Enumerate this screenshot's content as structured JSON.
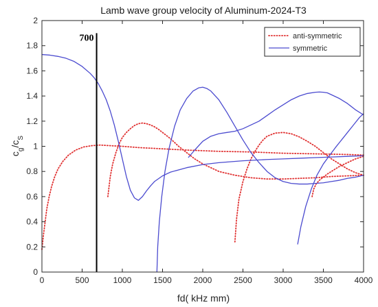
{
  "chart_data": {
    "type": "line",
    "title": "Lamb wave group velocity of Aluminum-2024-T3",
    "xlabel": "fd( kHz mm)",
    "ylabel": {
      "main": "c",
      "sub1": "g",
      "slash": "/c",
      "sub2": "S"
    },
    "xlim": [
      0,
      4000
    ],
    "ylim": [
      0,
      2
    ],
    "xticks": [
      0,
      500,
      1000,
      1500,
      2000,
      2500,
      3000,
      3500,
      4000
    ],
    "yticks": [
      0,
      0.2,
      0.4,
      0.6,
      0.8,
      1,
      1.2,
      1.4,
      1.6,
      1.8,
      2
    ],
    "grid": false,
    "legend_position": "top-right",
    "legend": [
      {
        "label": "anti-symmetric",
        "style": "dotted",
        "color": "#e03030"
      },
      {
        "label": "symmetric",
        "style": "solid",
        "color": "#4a4acf"
      }
    ],
    "annotations": [
      {
        "type": "vertical-line",
        "x": 680,
        "y_from": 0,
        "y_to": 1.9,
        "color": "#000000",
        "label": "700",
        "label_y": 1.84
      }
    ],
    "series": [
      {
        "group": "anti-symmetric",
        "x": [
          0,
          20,
          40,
          60,
          90,
          120,
          160,
          200,
          260,
          330,
          420,
          520,
          620,
          720,
          850,
          1000,
          1200,
          1500,
          1800,
          2200,
          2600,
          3000,
          3400,
          3800,
          4000
        ],
        "y": [
          0.18,
          0.3,
          0.4,
          0.5,
          0.6,
          0.68,
          0.76,
          0.82,
          0.88,
          0.93,
          0.97,
          0.995,
          1.005,
          1.01,
          1.005,
          1.0,
          0.99,
          0.98,
          0.97,
          0.96,
          0.955,
          0.945,
          0.94,
          0.935,
          0.93
        ]
      },
      {
        "group": "anti-symmetric",
        "x": [
          820,
          850,
          880,
          920,
          960,
          1000,
          1050,
          1100,
          1150,
          1200,
          1250,
          1300,
          1350,
          1400,
          1450,
          1500,
          1600,
          1700,
          1800,
          1900,
          2000,
          2200,
          2400,
          2600,
          2800,
          3000,
          3200,
          3400,
          3600,
          3800,
          4000
        ],
        "y": [
          0.6,
          0.76,
          0.86,
          0.95,
          1.02,
          1.07,
          1.11,
          1.14,
          1.165,
          1.18,
          1.185,
          1.18,
          1.17,
          1.155,
          1.135,
          1.11,
          1.06,
          1.0,
          0.95,
          0.9,
          0.86,
          0.8,
          0.77,
          0.75,
          0.74,
          0.74,
          0.745,
          0.75,
          0.76,
          0.765,
          0.77
        ]
      },
      {
        "group": "anti-symmetric",
        "x": [
          2400,
          2420,
          2450,
          2500,
          2550,
          2600,
          2650,
          2700,
          2750,
          2800,
          2900,
          3000,
          3100,
          3200,
          3300,
          3400,
          3500,
          3600,
          3700,
          3800,
          3900,
          4000
        ],
        "y": [
          0.24,
          0.42,
          0.58,
          0.72,
          0.82,
          0.9,
          0.96,
          1.01,
          1.05,
          1.08,
          1.105,
          1.11,
          1.1,
          1.075,
          1.04,
          1.0,
          0.95,
          0.9,
          0.86,
          0.82,
          0.79,
          0.77
        ]
      },
      {
        "group": "anti-symmetric",
        "x": [
          3360,
          3380,
          3410,
          3450,
          3500,
          3550,
          3600,
          3650,
          3700,
          3800,
          3900,
          4000
        ],
        "y": [
          0.6,
          0.66,
          0.7,
          0.73,
          0.755,
          0.78,
          0.8,
          0.82,
          0.84,
          0.87,
          0.9,
          0.92
        ]
      },
      {
        "group": "symmetric",
        "x": [
          0,
          100,
          200,
          300,
          400,
          500,
          600,
          650,
          700,
          750,
          800,
          850,
          900,
          950,
          1000,
          1050,
          1100,
          1150,
          1200,
          1250,
          1300,
          1350,
          1400,
          1500,
          1600,
          1800,
          2000,
          2200,
          2500,
          2800,
          3000,
          3200,
          3400,
          3600,
          3800,
          4000
        ],
        "y": [
          1.73,
          1.725,
          1.715,
          1.7,
          1.675,
          1.635,
          1.58,
          1.545,
          1.5,
          1.44,
          1.37,
          1.28,
          1.17,
          1.04,
          0.9,
          0.76,
          0.65,
          0.59,
          0.57,
          0.6,
          0.645,
          0.685,
          0.72,
          0.765,
          0.795,
          0.83,
          0.855,
          0.87,
          0.885,
          0.895,
          0.9,
          0.905,
          0.91,
          0.915,
          0.92,
          0.925
        ]
      },
      {
        "group": "symmetric",
        "x": [
          1430,
          1440,
          1460,
          1490,
          1530,
          1580,
          1650,
          1720,
          1800,
          1880,
          1950,
          2000,
          2050,
          2100,
          2200,
          2300,
          2400,
          2500,
          2600,
          2700,
          2800,
          2900,
          3000,
          3100,
          3200,
          3300,
          3400,
          3500,
          3600,
          3700,
          3800,
          3900,
          4000
        ],
        "y": [
          0.0,
          0.2,
          0.4,
          0.6,
          0.8,
          0.98,
          1.16,
          1.29,
          1.38,
          1.44,
          1.465,
          1.47,
          1.46,
          1.44,
          1.37,
          1.27,
          1.16,
          1.05,
          0.95,
          0.87,
          0.8,
          0.75,
          0.72,
          0.705,
          0.7,
          0.7,
          0.705,
          0.71,
          0.72,
          0.73,
          0.745,
          0.755,
          0.77
        ]
      },
      {
        "group": "symmetric",
        "x": [
          1820,
          1900,
          2000,
          2100,
          2200,
          2300,
          2400,
          2500,
          2600,
          2700,
          2800,
          2900,
          3000,
          3100,
          3200,
          3300,
          3400,
          3450,
          3500,
          3550,
          3600,
          3700,
          3800,
          3900,
          4000
        ],
        "y": [
          0.91,
          0.97,
          1.04,
          1.08,
          1.1,
          1.11,
          1.12,
          1.14,
          1.17,
          1.2,
          1.245,
          1.29,
          1.33,
          1.37,
          1.4,
          1.42,
          1.43,
          1.432,
          1.43,
          1.425,
          1.41,
          1.38,
          1.34,
          1.29,
          1.25
        ]
      },
      {
        "group": "symmetric",
        "x": [
          3180,
          3220,
          3280,
          3350,
          3420,
          3500,
          3580,
          3650,
          3700,
          3750,
          3800,
          3850,
          3900,
          3950,
          4000
        ],
        "y": [
          0.22,
          0.36,
          0.52,
          0.66,
          0.77,
          0.86,
          0.93,
          0.99,
          1.03,
          1.07,
          1.11,
          1.15,
          1.19,
          1.23,
          1.26
        ]
      }
    ]
  }
}
